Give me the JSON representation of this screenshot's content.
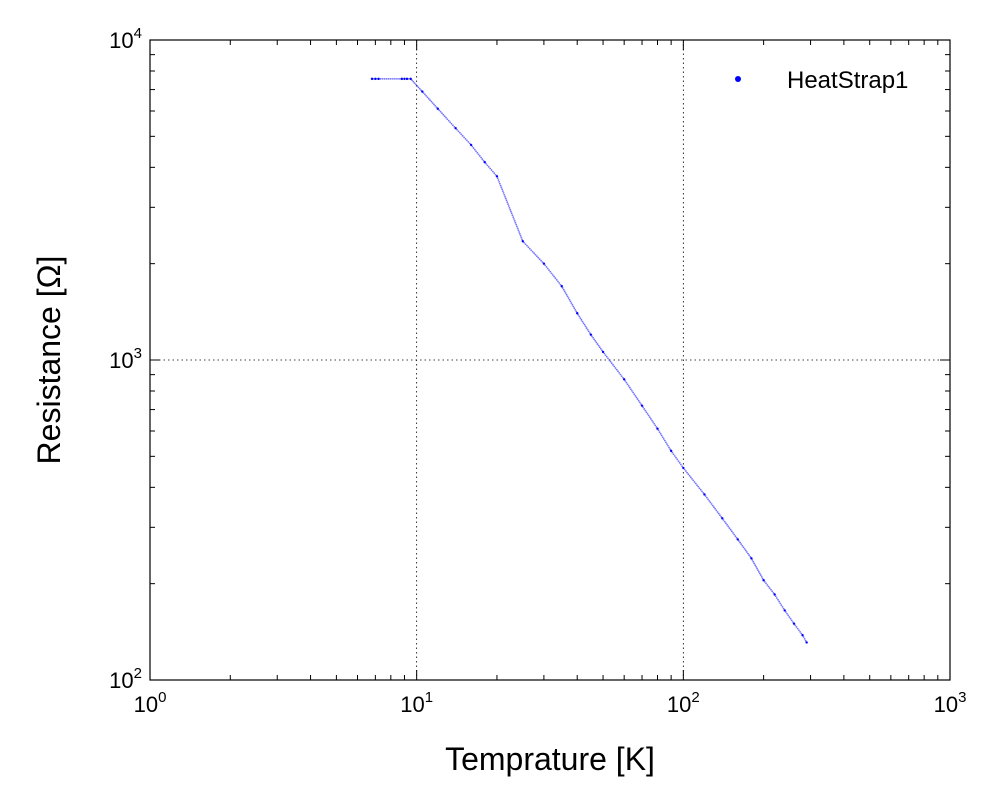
{
  "chart_data": {
    "type": "scatter",
    "title": "",
    "xlabel": "Temprature [K]",
    "ylabel": "Resistance [Ω]",
    "xscale": "log",
    "yscale": "log",
    "xlim": [
      1,
      1000
    ],
    "ylim": [
      100,
      10000
    ],
    "grid": true,
    "grid_style": "dotted",
    "legend_position": "top-right",
    "x_ticks": [
      {
        "value": 1,
        "base": "10",
        "exp": "0"
      },
      {
        "value": 10,
        "base": "10",
        "exp": "1"
      },
      {
        "value": 100,
        "base": "10",
        "exp": "2"
      },
      {
        "value": 1000,
        "base": "10",
        "exp": "3"
      }
    ],
    "y_ticks": [
      {
        "value": 100,
        "base": "10",
        "exp": "2"
      },
      {
        "value": 1000,
        "base": "10",
        "exp": "3"
      },
      {
        "value": 10000,
        "base": "10",
        "exp": "4"
      }
    ],
    "series": [
      {
        "name": "HeatStrap1",
        "color": "#0000ff",
        "marker": "point",
        "points": [
          [
            6.8,
            7560
          ],
          [
            7.0,
            7560
          ],
          [
            7.2,
            7560
          ],
          [
            8.8,
            7560
          ],
          [
            9.0,
            7560
          ],
          [
            9.2,
            7560
          ],
          [
            9.5,
            7560
          ],
          [
            10.5,
            6900
          ],
          [
            12,
            6100
          ],
          [
            14,
            5300
          ],
          [
            16,
            4700
          ],
          [
            18,
            4150
          ],
          [
            20,
            3750
          ],
          [
            25,
            2350
          ],
          [
            30,
            2000
          ],
          [
            35,
            1700
          ],
          [
            40,
            1400
          ],
          [
            45,
            1200
          ],
          [
            50,
            1060
          ],
          [
            60,
            870
          ],
          [
            70,
            720
          ],
          [
            80,
            610
          ],
          [
            90,
            520
          ],
          [
            100,
            460
          ],
          [
            120,
            380
          ],
          [
            140,
            320
          ],
          [
            160,
            275
          ],
          [
            180,
            240
          ],
          [
            200,
            205
          ],
          [
            220,
            185
          ],
          [
            240,
            165
          ],
          [
            260,
            150
          ],
          [
            280,
            138
          ],
          [
            290,
            131
          ]
        ]
      }
    ]
  }
}
